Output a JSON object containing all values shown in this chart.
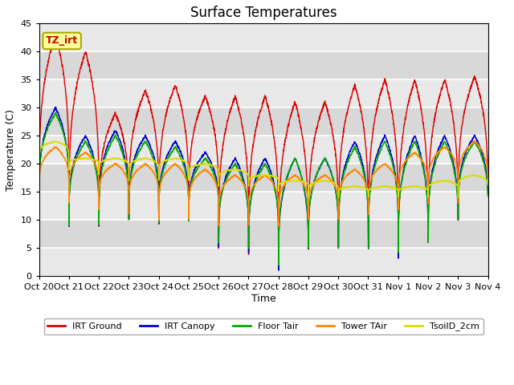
{
  "title": "Surface Temperatures",
  "xlabel": "Time",
  "ylabel": "Temperature (C)",
  "ylim": [
    0,
    45
  ],
  "yticks": [
    0,
    5,
    10,
    15,
    20,
    25,
    30,
    35,
    40,
    45
  ],
  "plot_bg_color": "#e8e8e8",
  "fig_bg_color": "#ffffff",
  "annotation_text": "TZ_irt",
  "annotation_bg": "#ffff99",
  "annotation_border": "#aaaa00",
  "series_colors": {
    "IRT Ground": "#dd0000",
    "IRT Canopy": "#0000cc",
    "Floor Tair": "#00aa00",
    "Tower TAir": "#ff8800",
    "TsoilD_2cm": "#dddd00"
  },
  "x_tick_labels": [
    "Oct 20",
    "Oct 21",
    "Oct 22",
    "Oct 23",
    "Oct 24",
    "Oct 25",
    "Oct 26",
    "Oct 27",
    "Oct 28",
    "Oct 29",
    "Oct 30",
    "Oct 31",
    "Nov 1",
    "Nov 2",
    "Nov 3",
    "Nov 4"
  ],
  "n_days": 15,
  "points_per_day": 144,
  "ground_peaks": [
    43,
    40,
    29,
    33,
    34,
    32,
    32,
    32,
    31,
    31,
    34,
    35,
    35,
    35,
    35.5
  ],
  "ground_mins": [
    12,
    9,
    9,
    10,
    9.5,
    10,
    5,
    4,
    1,
    5,
    5,
    5,
    3,
    6,
    10
  ],
  "canopy_peaks": [
    30,
    25,
    26,
    25,
    24,
    22,
    21,
    21,
    21,
    21,
    24,
    25,
    25,
    25,
    25
  ],
  "canopy_mins": [
    12,
    9,
    9,
    10,
    9.5,
    10,
    5,
    4,
    1,
    5,
    5,
    5,
    3,
    6,
    10
  ],
  "floor_peaks": [
    29,
    24,
    25,
    24,
    23,
    21,
    20,
    20,
    21,
    21,
    23,
    24,
    24,
    24,
    24
  ],
  "floor_mins": [
    13,
    9,
    9,
    10,
    9.5,
    10,
    6,
    5,
    2,
    5,
    5,
    5,
    4,
    6,
    10
  ],
  "tower_peaks": [
    23,
    22,
    20,
    20,
    20,
    19,
    18,
    18,
    18,
    18,
    19,
    20,
    22,
    23,
    24
  ],
  "tower_mins": [
    13,
    13,
    12,
    11,
    10,
    10,
    9,
    9,
    9,
    10,
    10,
    11,
    12,
    13,
    13
  ],
  "soil_peaks": [
    24,
    21,
    21,
    21,
    21,
    20,
    19,
    18,
    17,
    17,
    16,
    16,
    16,
    17,
    18
  ],
  "soil_mins": [
    19,
    19,
    18,
    17,
    17,
    17,
    16,
    16,
    15,
    14,
    14,
    14,
    14,
    14,
    14
  ]
}
